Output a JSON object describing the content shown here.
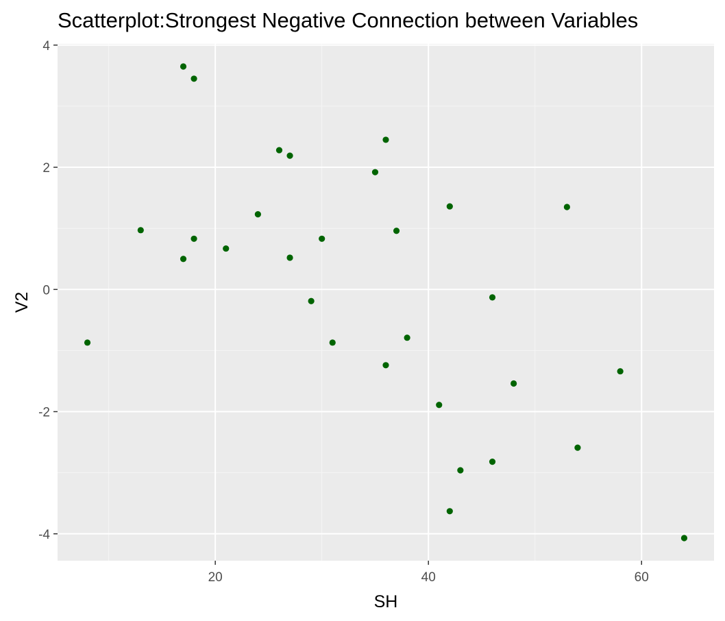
{
  "chart_data": {
    "type": "scatter",
    "title": "Scatterplot:Strongest Negative Connection between Variables",
    "xlabel": "SH",
    "ylabel": "V2",
    "xlim": [
      5.2,
      66.8
    ],
    "ylim": [
      -4.44,
      4.02
    ],
    "x_ticks": [
      20,
      40,
      60
    ],
    "y_ticks": [
      -4,
      -2,
      0,
      2,
      4
    ],
    "x_tick_labels": [
      "20",
      "40",
      "60"
    ],
    "y_tick_labels": [
      "-4",
      "-2",
      "0",
      "2",
      "4"
    ],
    "grid": true,
    "legend": "none",
    "colors": {
      "panel_background": "#ebebeb",
      "grid_major": "#ffffff",
      "grid_minor": "#f5f5f5",
      "point": "#006400"
    },
    "points": [
      {
        "x": 8,
        "y": -0.87
      },
      {
        "x": 13,
        "y": 0.97
      },
      {
        "x": 17,
        "y": 3.65
      },
      {
        "x": 17,
        "y": 0.5
      },
      {
        "x": 18,
        "y": 3.45
      },
      {
        "x": 18,
        "y": 0.83
      },
      {
        "x": 21,
        "y": 0.67
      },
      {
        "x": 24,
        "y": 1.23
      },
      {
        "x": 26,
        "y": 2.28
      },
      {
        "x": 27,
        "y": 2.19
      },
      {
        "x": 27,
        "y": 0.52
      },
      {
        "x": 29,
        "y": -0.19
      },
      {
        "x": 30,
        "y": 0.83
      },
      {
        "x": 31,
        "y": -0.87
      },
      {
        "x": 35,
        "y": 1.92
      },
      {
        "x": 36,
        "y": 2.45
      },
      {
        "x": 36,
        "y": -1.24
      },
      {
        "x": 37,
        "y": 0.96
      },
      {
        "x": 38,
        "y": -0.79
      },
      {
        "x": 41,
        "y": -1.89
      },
      {
        "x": 42,
        "y": 1.36
      },
      {
        "x": 42,
        "y": -3.63
      },
      {
        "x": 43,
        "y": -2.96
      },
      {
        "x": 46,
        "y": -0.13
      },
      {
        "x": 46,
        "y": -2.82
      },
      {
        "x": 48,
        "y": -1.54
      },
      {
        "x": 53,
        "y": 1.35
      },
      {
        "x": 54,
        "y": -2.59
      },
      {
        "x": 58,
        "y": -1.34
      },
      {
        "x": 64,
        "y": -4.07
      }
    ]
  }
}
